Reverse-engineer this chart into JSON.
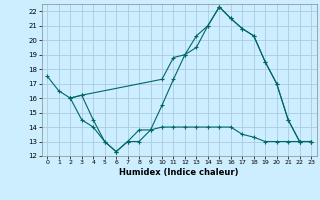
{
  "title": "",
  "xlabel": "Humidex (Indice chaleur)",
  "bg_color": "#cceeff",
  "grid_color": "#aaccdd",
  "line_color": "#006666",
  "xlim": [
    -0.5,
    23.5
  ],
  "ylim": [
    12,
    22.5
  ],
  "xticks": [
    0,
    1,
    2,
    3,
    4,
    5,
    6,
    7,
    8,
    9,
    10,
    11,
    12,
    13,
    14,
    15,
    16,
    17,
    18,
    19,
    20,
    21,
    22,
    23
  ],
  "yticks": [
    12,
    13,
    14,
    15,
    16,
    17,
    18,
    19,
    20,
    21,
    22
  ],
  "line1_x": [
    0,
    1,
    2,
    3,
    4,
    5,
    6,
    7,
    8,
    9,
    10,
    11,
    12,
    13,
    14,
    15,
    16,
    17,
    18,
    19,
    20,
    21,
    22,
    23
  ],
  "line1_y": [
    17.5,
    16.5,
    16.0,
    16.2,
    14.5,
    13.0,
    12.3,
    13.0,
    13.0,
    13.8,
    15.5,
    17.3,
    19.0,
    19.5,
    21.0,
    22.3,
    21.5,
    20.8,
    20.3,
    18.5,
    17.0,
    14.5,
    13.0,
    13.0
  ],
  "line2_x": [
    2,
    3,
    10,
    11,
    12,
    13,
    14,
    15,
    16,
    17,
    18,
    19,
    20,
    21,
    22,
    23
  ],
  "line2_y": [
    16.0,
    16.2,
    17.3,
    18.8,
    19.0,
    20.3,
    21.0,
    22.3,
    21.5,
    20.8,
    20.3,
    18.5,
    17.0,
    14.5,
    13.0,
    13.0
  ],
  "line3_x": [
    2,
    3,
    4,
    5,
    6,
    7,
    8,
    9,
    10,
    11,
    12,
    13,
    14,
    15,
    16,
    17,
    18,
    19,
    20,
    21,
    22,
    23
  ],
  "line3_y": [
    16.0,
    14.5,
    14.0,
    13.0,
    12.3,
    13.0,
    13.8,
    13.8,
    14.0,
    14.0,
    14.0,
    14.0,
    14.0,
    14.0,
    14.0,
    13.5,
    13.3,
    13.0,
    13.0,
    13.0,
    13.0,
    13.0
  ]
}
